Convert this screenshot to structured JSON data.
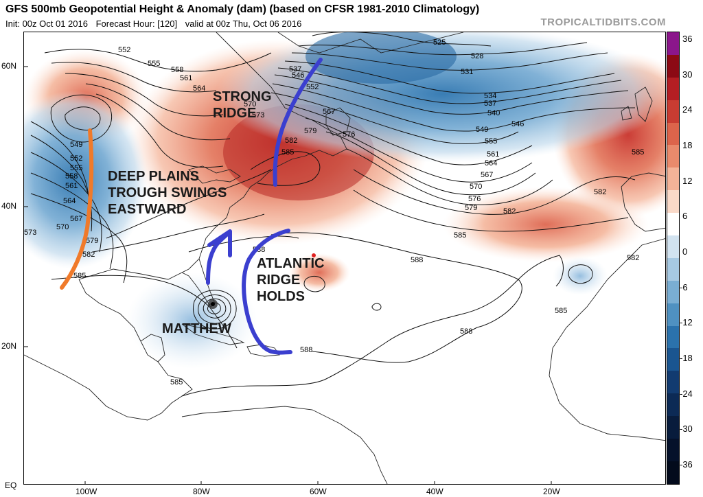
{
  "header": {
    "title": "GFS 500mb Geopotential Height & Anomaly (dam) (based on CFSR 1981-2010 Climatology)",
    "init": "Init: 00z Oct 01 2016",
    "forecast_hour": "Forecast Hour: [120]",
    "valid": "valid at 00z Thu, Oct 06 2016",
    "credit": "TROPICALTIDBITS.COM"
  },
  "axes": {
    "lat_labels": [
      "60N",
      "40N",
      "20N",
      "EQ"
    ],
    "lon_labels": [
      "100W",
      "80W",
      "60W",
      "40W",
      "20W"
    ]
  },
  "colorbar": {
    "ticks": [
      "36",
      "30",
      "24",
      "18",
      "12",
      "6",
      "0",
      "-6",
      "-12",
      "-18",
      "-24",
      "-30",
      "-36"
    ],
    "colors": [
      "#8b168b",
      "#8c0a14",
      "#b41e23",
      "#c83c32",
      "#dc644b",
      "#e98a6c",
      "#f4b398",
      "#fad9c8",
      "#ffffff",
      "#d2e3f0",
      "#a7c9e2",
      "#7aaed3",
      "#4f91c1",
      "#2b72ac",
      "#1a5590",
      "#123b70",
      "#0c2a55",
      "#081c3c",
      "#05112a",
      "#030b1c"
    ]
  },
  "annotations": {
    "strong_ridge": "STRONG\nRIDGE",
    "plains_trough": "DEEP PLAINS\nTROUGH SWINGS\nEASTWARD",
    "atlantic_ridge": "ATLANTIC\nRIDGE\nHOLDS",
    "storm": "MATTHEW"
  },
  "contour_labels": [
    "552",
    "555",
    "558",
    "561",
    "564",
    "549",
    "552",
    "555",
    "558",
    "561",
    "564",
    "567",
    "570",
    "573",
    "579",
    "582",
    "585",
    "537",
    "546",
    "552",
    "567",
    "570",
    "573",
    "576",
    "579",
    "582",
    "585",
    "525",
    "528",
    "531",
    "534",
    "537",
    "540",
    "546",
    "549",
    "555",
    "561",
    "564",
    "567",
    "570",
    "576",
    "579",
    "582",
    "582",
    "585",
    "585",
    "588",
    "588",
    "588",
    "588",
    "582",
    "585",
    "585"
  ],
  "colors": {
    "ridge_arrow": "#3b3fcf",
    "trough_line": "#f07a2a",
    "positive_anomaly": "#d9654a",
    "negative_anomaly": "#4f91c1"
  }
}
